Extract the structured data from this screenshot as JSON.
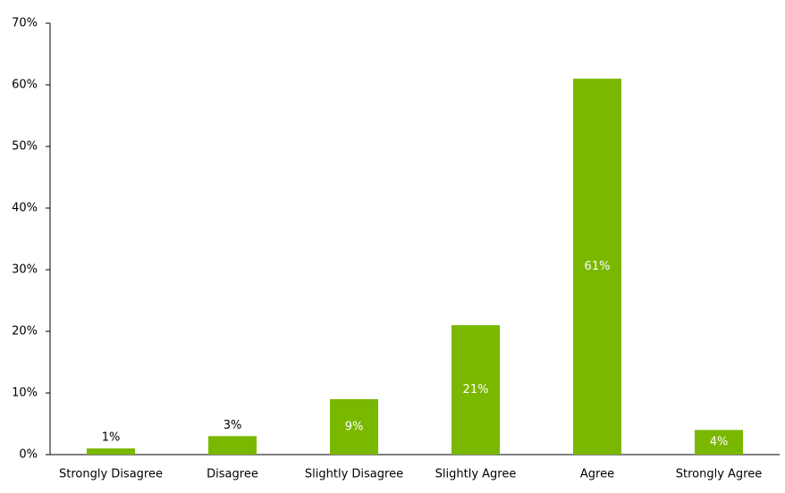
{
  "chart_data": {
    "type": "bar",
    "categories": [
      "Strongly Disagree",
      "Disagree",
      "Slightly Disagree",
      "Slightly Agree",
      "Agree",
      "Strongly Agree"
    ],
    "values": [
      1,
      3,
      9,
      21,
      61,
      4
    ],
    "value_labels": [
      "1%",
      "3%",
      "9%",
      "21%",
      "61%",
      "4%"
    ],
    "color": "#7ab800",
    "ylim": [
      0,
      70
    ],
    "yticks": [
      {
        "value": 0,
        "label": "0%"
      },
      {
        "value": 10,
        "label": "10%"
      },
      {
        "value": 20,
        "label": "20%"
      },
      {
        "value": 30,
        "label": "30%"
      },
      {
        "value": 40,
        "label": "40%"
      },
      {
        "value": 50,
        "label": "50%"
      },
      {
        "value": 60,
        "label": "60%"
      },
      {
        "value": 70,
        "label": "70%"
      }
    ],
    "grid": false
  }
}
